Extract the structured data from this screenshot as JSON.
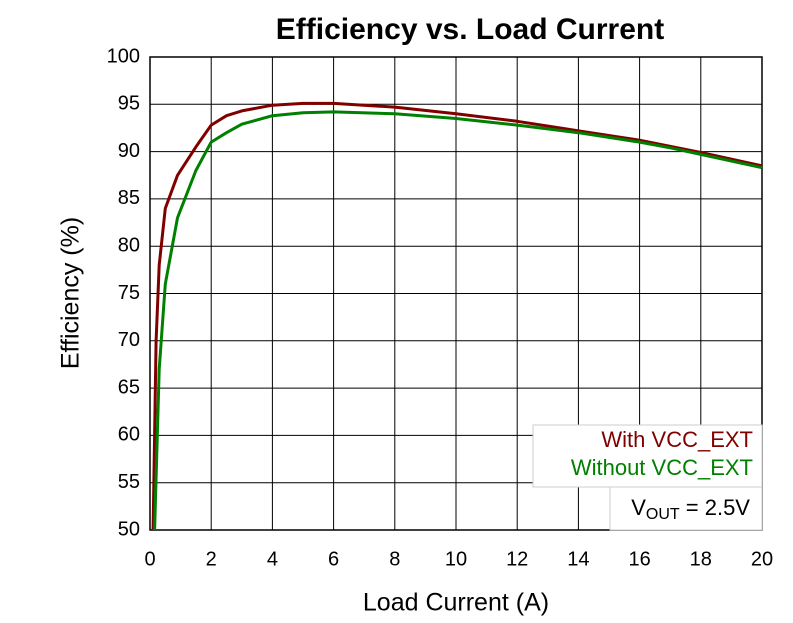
{
  "chart_data": {
    "type": "line",
    "title": "Efficiency vs. Load Current",
    "x_label": "Load Current (A)",
    "y_label": "Efficiency (%)",
    "xlim": [
      0,
      20
    ],
    "xticks": [
      0,
      2,
      4,
      6,
      8,
      10,
      12,
      14,
      16,
      18,
      20
    ],
    "ylim": [
      50,
      100
    ],
    "yticks": [
      50,
      55,
      60,
      65,
      70,
      75,
      80,
      85,
      90,
      95,
      100
    ],
    "grid": true,
    "legend": "lower right",
    "annotation": {
      "main": "V",
      "sub": "OUT",
      "rest": " = 2.5V"
    },
    "series": [
      {
        "name": "With VCC_EXT",
        "color": "#800000",
        "x": [
          0.1,
          0.2,
          0.3,
          0.5,
          0.9,
          1.5,
          2,
          2.5,
          3,
          4,
          5,
          6,
          8,
          10,
          12,
          14,
          16,
          18,
          20
        ],
        "values": [
          50,
          70,
          78,
          84,
          87.5,
          90.5,
          92.8,
          93.8,
          94.3,
          94.9,
          95.1,
          95.1,
          94.7,
          94,
          93.2,
          92.2,
          91.2,
          89.9,
          88.5
        ]
      },
      {
        "name": "Without VCC_EXT",
        "color": "#008000",
        "x": [
          0.15,
          0.3,
          0.5,
          0.9,
          1.5,
          2,
          2.5,
          3,
          4,
          5,
          6,
          8,
          10,
          12,
          14,
          16,
          17,
          18,
          20
        ],
        "values": [
          50,
          67,
          76,
          83,
          88,
          91,
          92,
          92.9,
          93.8,
          94.1,
          94.2,
          94,
          93.5,
          92.8,
          92,
          91,
          90.4,
          89.7,
          88.3
        ]
      }
    ]
  }
}
